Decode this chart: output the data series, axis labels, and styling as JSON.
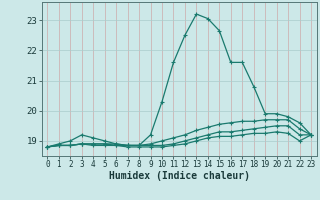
{
  "title": "",
  "xlabel": "Humidex (Indice chaleur)",
  "ylabel": "",
  "background_color": "#cce8e8",
  "grid_color": "#aacccc",
  "line_color": "#1a7a6e",
  "xlim": [
    -0.5,
    23.5
  ],
  "ylim": [
    18.5,
    23.6
  ],
  "yticks": [
    19,
    20,
    21,
    22,
    23
  ],
  "xticks": [
    0,
    1,
    2,
    3,
    4,
    5,
    6,
    7,
    8,
    9,
    10,
    11,
    12,
    13,
    14,
    15,
    16,
    17,
    18,
    19,
    20,
    21,
    22,
    23
  ],
  "series": [
    {
      "x": [
        0,
        1,
        2,
        3,
        4,
        5,
        6,
        7,
        8,
        9,
        10,
        11,
        12,
        13,
        14,
        15,
        16,
        17,
        18,
        19,
        20,
        21,
        22,
        23
      ],
      "y": [
        18.8,
        18.9,
        19.0,
        19.2,
        19.1,
        19.0,
        18.9,
        18.85,
        18.85,
        19.2,
        20.3,
        21.6,
        22.5,
        23.2,
        23.05,
        22.65,
        21.6,
        21.6,
        20.8,
        19.9,
        19.9,
        19.8,
        19.6,
        19.2
      ]
    },
    {
      "x": [
        0,
        1,
        2,
        3,
        4,
        5,
        6,
        7,
        8,
        9,
        10,
        11,
        12,
        13,
        14,
        15,
        16,
        17,
        18,
        19,
        20,
        21,
        22,
        23
      ],
      "y": [
        18.8,
        18.85,
        18.85,
        18.9,
        18.9,
        18.9,
        18.9,
        18.85,
        18.85,
        18.9,
        19.0,
        19.1,
        19.2,
        19.35,
        19.45,
        19.55,
        19.6,
        19.65,
        19.65,
        19.7,
        19.7,
        19.7,
        19.4,
        19.2
      ]
    },
    {
      "x": [
        0,
        1,
        2,
        3,
        4,
        5,
        6,
        7,
        8,
        9,
        10,
        11,
        12,
        13,
        14,
        15,
        16,
        17,
        18,
        19,
        20,
        21,
        22,
        23
      ],
      "y": [
        18.8,
        18.85,
        18.85,
        18.9,
        18.9,
        18.9,
        18.85,
        18.85,
        18.85,
        18.85,
        18.85,
        18.9,
        19.0,
        19.1,
        19.2,
        19.3,
        19.3,
        19.35,
        19.4,
        19.45,
        19.5,
        19.5,
        19.2,
        19.2
      ]
    },
    {
      "x": [
        0,
        1,
        2,
        3,
        4,
        5,
        6,
        7,
        8,
        9,
        10,
        11,
        12,
        13,
        14,
        15,
        16,
        17,
        18,
        19,
        20,
        21,
        22,
        23
      ],
      "y": [
        18.8,
        18.85,
        18.85,
        18.9,
        18.85,
        18.85,
        18.85,
        18.8,
        18.8,
        18.8,
        18.8,
        18.85,
        18.9,
        19.0,
        19.1,
        19.15,
        19.15,
        19.2,
        19.25,
        19.25,
        19.3,
        19.25,
        19.0,
        19.2
      ]
    }
  ]
}
